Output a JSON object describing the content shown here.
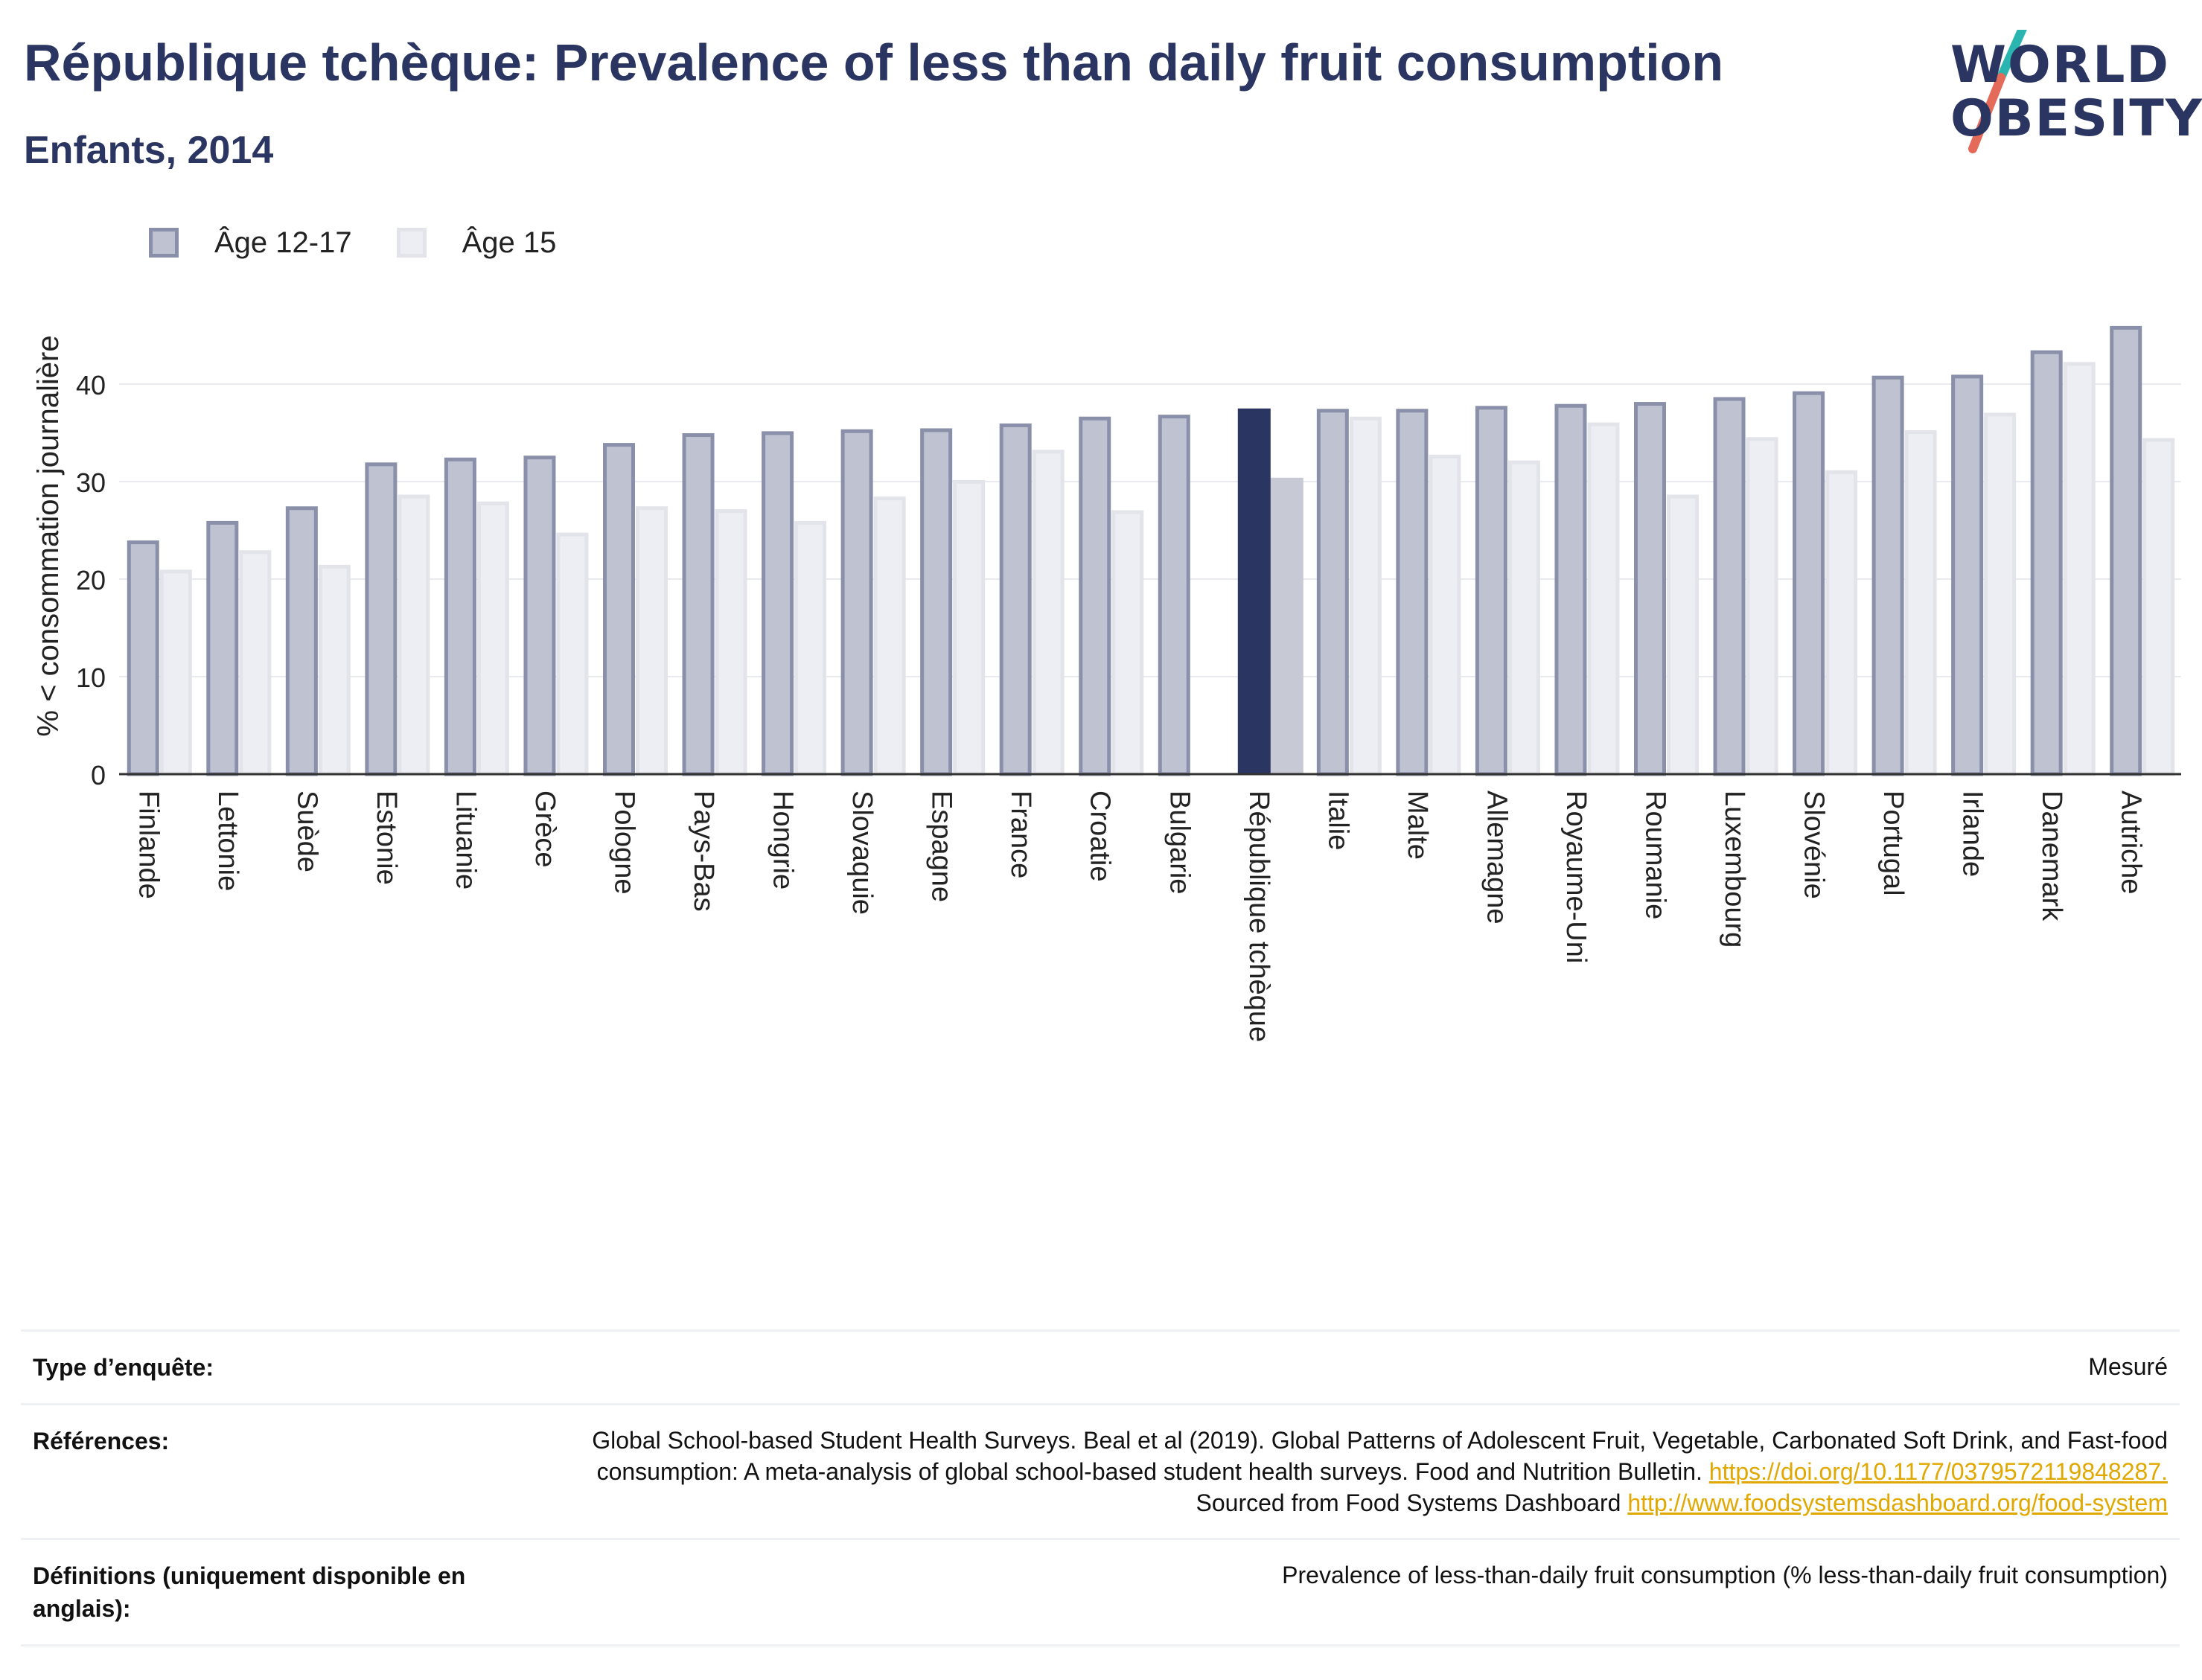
{
  "header": {
    "title": "République tchèque: Prevalence of less than daily fruit consumption",
    "subtitle": "Enfants, 2014"
  },
  "logo": {
    "line1": "WORLD",
    "line2": "OBESITY",
    "colors": {
      "text": "#2b3561",
      "slash_top": "#2bb5b0",
      "slash_bottom": "#e46a5a"
    }
  },
  "legend": [
    {
      "label": "Âge 12-17",
      "color": "#bfc2d1",
      "border": "#8a90aa"
    },
    {
      "label": "Âge 15",
      "color": "#eceef3",
      "border": "#e2e4ea"
    }
  ],
  "chart_data": {
    "type": "bar",
    "ylabel": "% < consommation journalière",
    "ylim": [
      0,
      50
    ],
    "yticks": [
      0,
      10,
      20,
      30,
      40
    ],
    "highlight": "République tchèque",
    "highlight_colors": {
      "Âge 12-17": "#2b3561",
      "Âge 15": "#c7c9d5"
    },
    "categories": [
      "Finlande",
      "Lettonie",
      "Suède",
      "Estonie",
      "Lituanie",
      "Grèce",
      "Pologne",
      "Pays-Bas",
      "Hongrie",
      "Slovaquie",
      "Espagne",
      "France",
      "Croatie",
      "Bulgarie",
      "République tchèque",
      "Italie",
      "Malte",
      "Allemagne",
      "Royaume-Uni",
      "Roumanie",
      "Luxembourg",
      "Slovénie",
      "Portugal",
      "Irlande",
      "Danemark",
      "Autriche"
    ],
    "series": [
      {
        "name": "Âge 12-17",
        "values": [
          24.0,
          26.0,
          27.5,
          32.0,
          32.5,
          32.7,
          34.0,
          35.0,
          35.2,
          35.4,
          35.5,
          36.0,
          36.7,
          36.9,
          37.5,
          37.5,
          37.5,
          37.8,
          38.0,
          38.2,
          38.7,
          39.3,
          40.9,
          41.0,
          43.5,
          46.0
        ]
      },
      {
        "name": "Âge 15",
        "values": [
          21.0,
          23.0,
          21.5,
          28.7,
          28.0,
          24.8,
          27.5,
          27.2,
          26.0,
          28.5,
          30.2,
          33.3,
          27.1,
          null,
          30.4,
          36.7,
          32.8,
          32.2,
          36.1,
          28.7,
          34.6,
          31.2,
          35.3,
          37.1,
          42.3,
          34.5
        ]
      }
    ]
  },
  "info": [
    {
      "key": "Type d’enquête:",
      "value": "Mesuré"
    },
    {
      "key": "Références:",
      "value_parts": {
        "text1": "Global School-based Student Health Surveys. Beal et al (2019). Global Patterns of Adolescent Fruit, Vegetable, Carbonated Soft Drink, and Fast-food consumption: A meta-analysis of global school-based student health surveys. Food and Nutrition Bulletin. ",
        "link1": "https://doi.org/10.1177/0379572119848287.",
        "text2": " Sourced from Food Systems Dashboard ",
        "link2": "http://www.foodsystemsdashboard.org/food-system"
      }
    },
    {
      "key": "Définitions (uniquement disponible en anglais):",
      "value": "Prevalence of less-than-daily fruit consumption (% less-than-daily fruit consumption)"
    }
  ]
}
